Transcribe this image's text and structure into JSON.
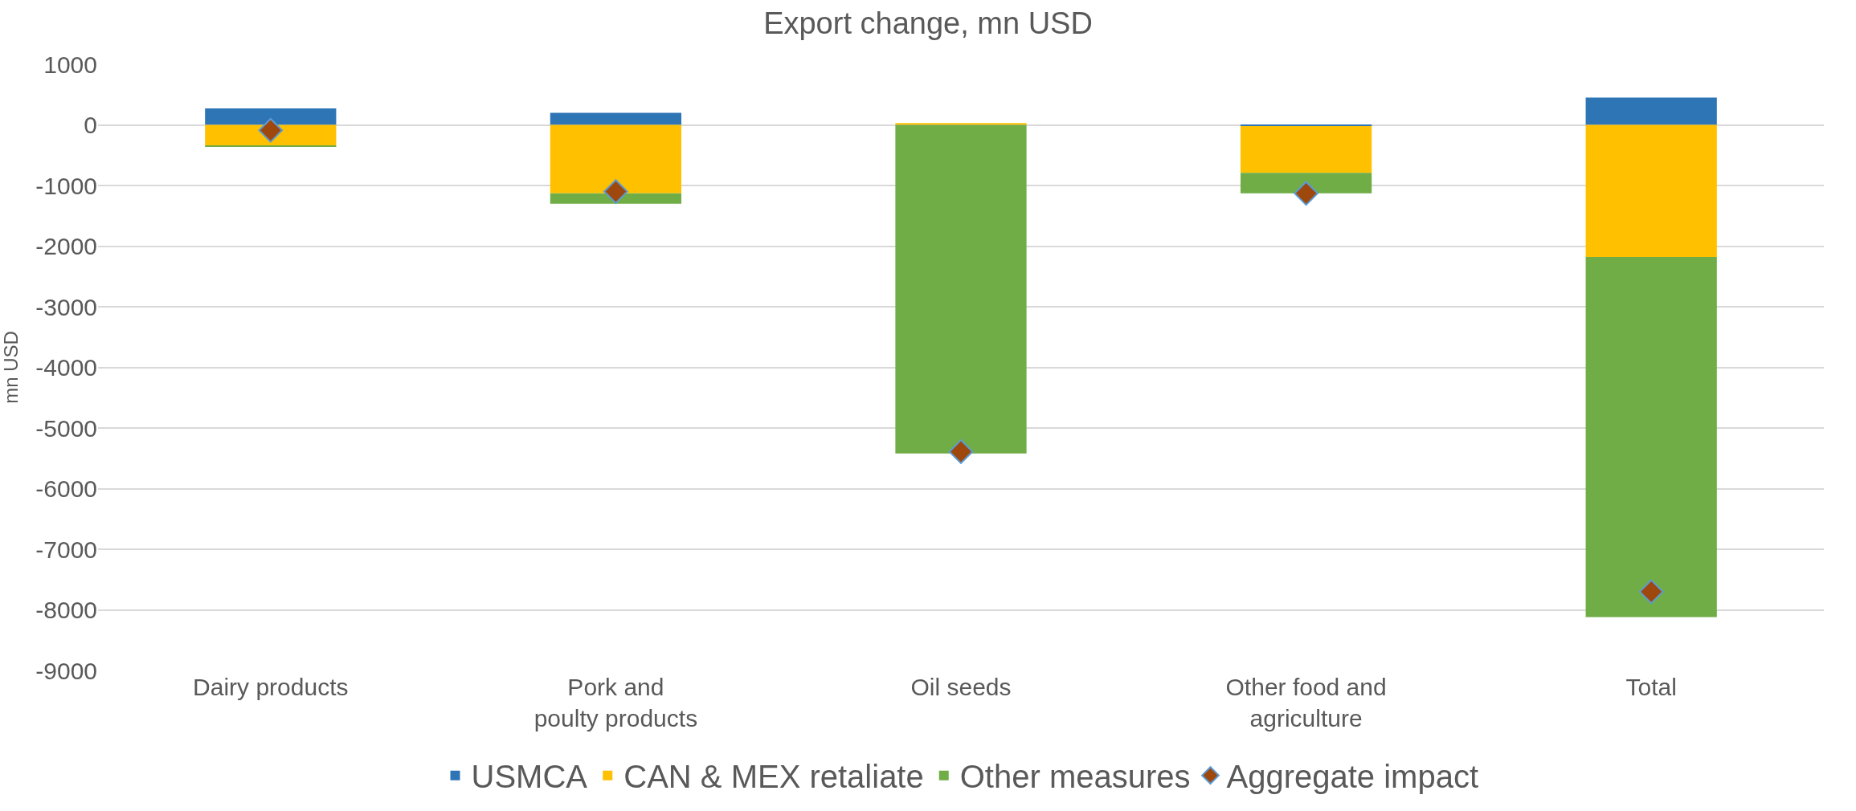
{
  "chart_data": {
    "type": "bar",
    "title": "Export change, mn USD",
    "ylabel": "mn USD",
    "stacked": true,
    "categories": [
      "Dairy products",
      "Pork and poulty products",
      "Oil seeds",
      "Other food and agriculture",
      "Total"
    ],
    "series": [
      {
        "name": "USMCA",
        "color": "#2e75b6",
        "values": [
          270,
          200,
          0,
          -20,
          450
        ]
      },
      {
        "name": "CAN & MEX retaliate",
        "color": "#ffc000",
        "values": [
          -340,
          -1130,
          30,
          -770,
          -2180
        ]
      },
      {
        "name": "Other measures",
        "color": "#70ad47",
        "values": [
          -20,
          -170,
          -5420,
          -340,
          -5940
        ]
      },
      {
        "name": "Aggregate impact",
        "type": "scatter",
        "marker": "diamond",
        "color": "#9e480e",
        "values": [
          -90,
          -1100,
          -5390,
          -1130,
          -7700
        ]
      }
    ],
    "ylim": [
      -9000,
      1000
    ],
    "yticks": [
      1000,
      0,
      -1000,
      -2000,
      -3000,
      -4000,
      -5000,
      -6000,
      -7000,
      -8000,
      -9000
    ],
    "grid": "y",
    "legend": "bottom"
  }
}
